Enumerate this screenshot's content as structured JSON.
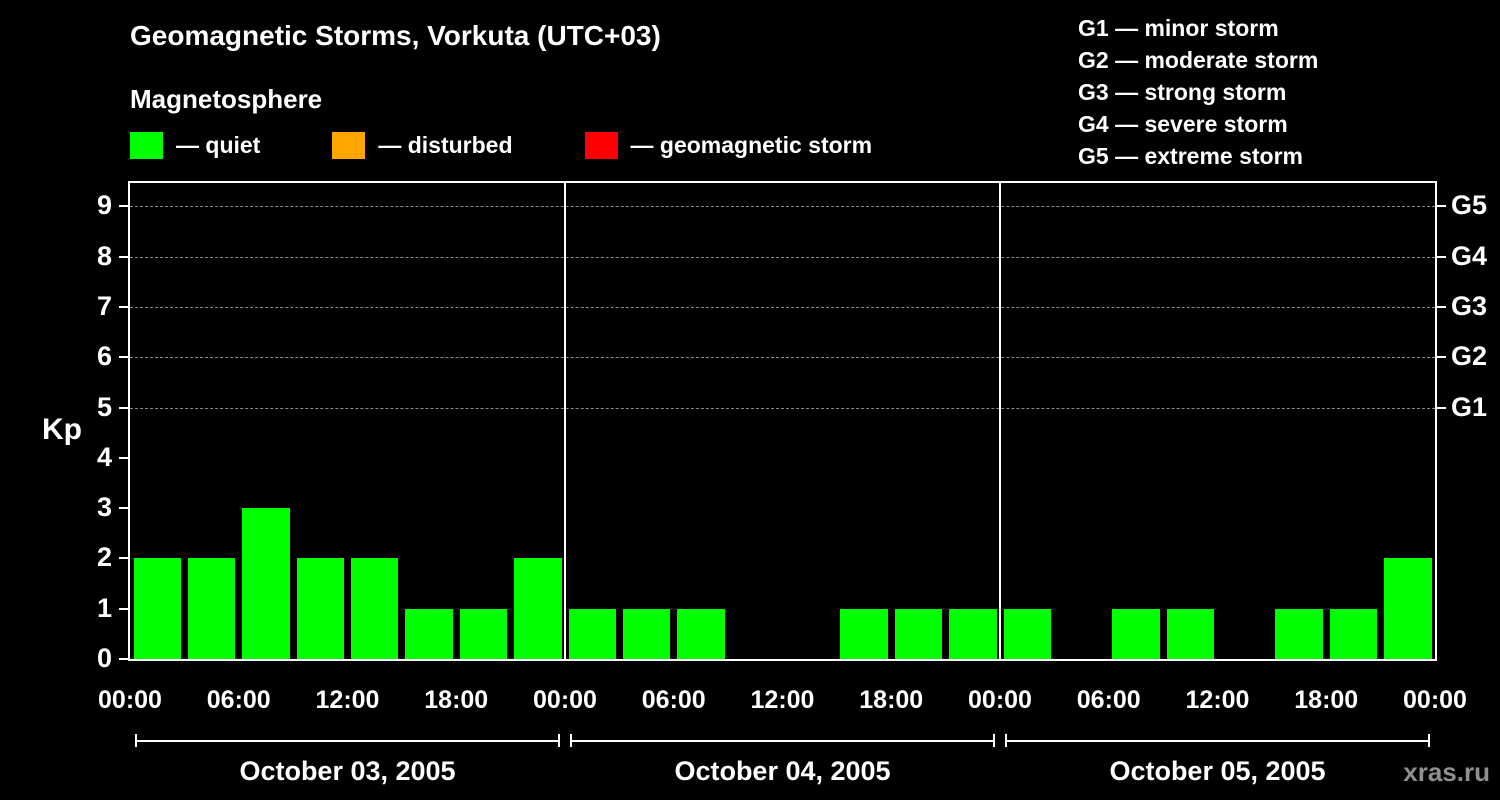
{
  "header": {
    "title": "Geomagnetic Storms, Vorkuta (UTC+03)",
    "subtitle": "Magnetosphere"
  },
  "legend": {
    "items": [
      {
        "key": "quiet",
        "label": "— quiet",
        "color": "#00ff00"
      },
      {
        "key": "disturbed",
        "label": "— disturbed",
        "color": "#ffa500"
      },
      {
        "key": "storm",
        "label": "— geomagnetic storm",
        "color": "#ff0000"
      }
    ]
  },
  "g_legend": {
    "lines": [
      "G1 — minor storm",
      "G2 — moderate storm",
      "G3 — strong storm",
      "G4 — severe storm",
      "G5 — extreme storm"
    ]
  },
  "footer": {
    "watermark": "xras.ru"
  },
  "chart_data": {
    "type": "bar",
    "title": "Geomagnetic Storms, Vorkuta (UTC+03)",
    "subtitle": "Magnetosphere",
    "ylabel": "Kp",
    "xlabel": "",
    "ylim": [
      0,
      9.4
    ],
    "grid": "dashed horizontal lines at storm levels 5-9",
    "y_ticks": [
      0,
      1,
      2,
      3,
      4,
      5,
      6,
      7,
      8,
      9
    ],
    "gridlines": [
      5,
      6,
      7,
      8,
      9
    ],
    "right_axis_labels": [
      {
        "level": 5,
        "label": "G1"
      },
      {
        "level": 6,
        "label": "G2"
      },
      {
        "level": 7,
        "label": "G3"
      },
      {
        "level": 8,
        "label": "G4"
      },
      {
        "level": 9,
        "label": "G5"
      }
    ],
    "x_tick_labels": [
      "00:00",
      "06:00",
      "12:00",
      "18:00"
    ],
    "interval_hours": 3,
    "days": [
      {
        "date": "October 03, 2005",
        "values": [
          2,
          2,
          3,
          2,
          2,
          1,
          1,
          2
        ]
      },
      {
        "date": "October 04, 2005",
        "values": [
          1,
          1,
          1,
          0,
          0,
          1,
          1,
          1
        ]
      },
      {
        "date": "October 05, 2005",
        "values": [
          1,
          0,
          1,
          1,
          0,
          1,
          1,
          2
        ]
      }
    ],
    "colors": {
      "quiet": "#00ff00",
      "disturbed": "#ffa500",
      "storm": "#ff0000"
    },
    "color_rule": {
      "disturbed_min": 4,
      "storm_min": 5
    }
  }
}
